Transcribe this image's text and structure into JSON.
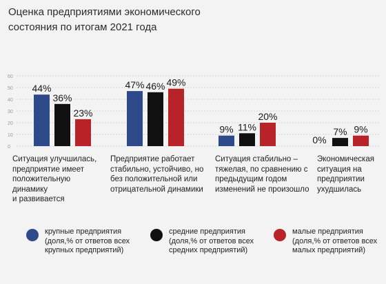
{
  "chart_data": {
    "type": "bar",
    "title": [
      "Оценка предприятиями экономического",
      "состояния по итогам 2021 года"
    ],
    "categories": [
      "Ситуация улучшилась,\nпредприятие имеет\nположительную\nдинамику\nи развивается",
      "Предприятие работает\nстабильно, устойчиво, но\nбез положительной или\nотрицательной динамики",
      "Ситуация стабильно –\nтяжелая, по сравнению с\nпредыдущим годом\nизменений не произошло",
      "Экономическая\nситуация на\nпредприятии\nухудшилась"
    ],
    "series": [
      {
        "name": "крупные предприятия\n(доля,% от ответов всех\nкрупных предприятий)",
        "values": [
          44,
          47,
          9,
          0
        ],
        "labels": [
          "44%",
          "47%",
          "9%",
          "0%"
        ],
        "color": "#2e4a8b"
      },
      {
        "name": "средние предприятия\n(доля,% от ответов всех\nсредних предприятий)",
        "values": [
          36,
          46,
          11,
          7
        ],
        "labels": [
          "36%",
          "46%",
          "11%",
          "7%"
        ],
        "color": "#111111"
      },
      {
        "name": "малые предприятия\n(доля,% от ответов всех\nмалых предприятий)",
        "values": [
          23,
          49,
          20,
          9
        ],
        "labels": [
          "23%",
          "49%",
          "20%",
          "9%"
        ],
        "color": "#b8232a"
      }
    ],
    "y_ticks": [
      "0",
      "10",
      "20",
      "30",
      "40",
      "50",
      "60"
    ],
    "ylim": [
      0,
      60
    ],
    "grid": true,
    "legend_position": "bottom"
  }
}
